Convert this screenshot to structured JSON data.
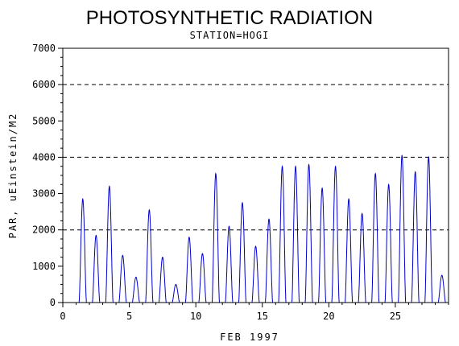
{
  "chart_data": {
    "type": "line",
    "title": "PHOTOSYNTHETIC RADIATION",
    "subtitle": "STATION=HOGI",
    "xlabel": "FEB 1997",
    "ylabel": "PAR, uEinstein/M2",
    "xlim": [
      0,
      29
    ],
    "ylim": [
      0,
      7000
    ],
    "x_ticks": [
      0,
      5,
      10,
      15,
      20,
      25
    ],
    "x_tick_labels": [
      "0",
      "5",
      "10",
      "15",
      "20",
      "25"
    ],
    "y_ticks": [
      0,
      1000,
      2000,
      3000,
      4000,
      5000,
      6000,
      7000
    ],
    "y_tick_labels": [
      "0",
      "1000",
      "2000",
      "3000",
      "4000",
      "5000",
      "6000",
      "7000"
    ],
    "reference_lines_y": [
      2000,
      4000,
      6000
    ],
    "grid": false,
    "series_color": "#0000cc",
    "daily_peaks": [
      {
        "day": 1,
        "peak": 2850
      },
      {
        "day": 2,
        "peak": 1850
      },
      {
        "day": 3,
        "peak": 3200
      },
      {
        "day": 4,
        "peak": 1300
      },
      {
        "day": 5,
        "peak": 700
      },
      {
        "day": 6,
        "peak": 2550
      },
      {
        "day": 7,
        "peak": 1250
      },
      {
        "day": 8,
        "peak": 500
      },
      {
        "day": 9,
        "peak": 1800
      },
      {
        "day": 10,
        "peak": 1350
      },
      {
        "day": 11,
        "peak": 3550
      },
      {
        "day": 12,
        "peak": 2100
      },
      {
        "day": 13,
        "peak": 2750
      },
      {
        "day": 14,
        "peak": 1550
      },
      {
        "day": 15,
        "peak": 2300
      },
      {
        "day": 16,
        "peak": 3750
      },
      {
        "day": 17,
        "peak": 3750
      },
      {
        "day": 18,
        "peak": 3800
      },
      {
        "day": 19,
        "peak": 3150
      },
      {
        "day": 20,
        "peak": 3750
      },
      {
        "day": 21,
        "peak": 2850
      },
      {
        "day": 22,
        "peak": 2450
      },
      {
        "day": 23,
        "peak": 3550
      },
      {
        "day": 24,
        "peak": 3250
      },
      {
        "day": 25,
        "peak": 4050
      },
      {
        "day": 26,
        "peak": 3600
      },
      {
        "day": 27,
        "peak": 4000
      },
      {
        "day": 28,
        "peak": 750
      }
    ]
  }
}
